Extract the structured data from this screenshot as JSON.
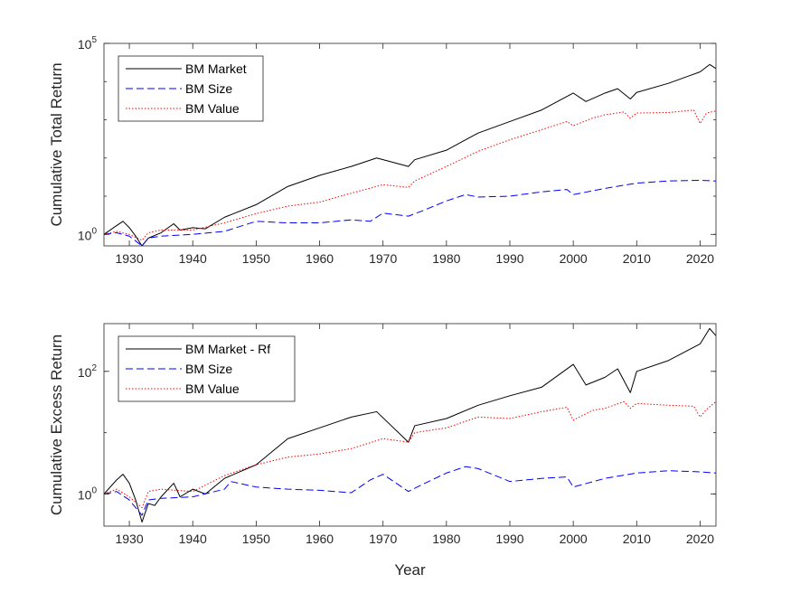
{
  "chart_data": [
    {
      "type": "line",
      "ylabel": "Cumulative Total Return",
      "xlabel": "",
      "yscale": "log",
      "xlim": [
        1926,
        2022.5
      ],
      "ylim": [
        0.5,
        100000
      ],
      "x_ticks": [
        1930,
        1940,
        1950,
        1960,
        1970,
        1980,
        1990,
        2000,
        2010,
        2020
      ],
      "y_ticks": [
        {
          "base": "10",
          "exp": "0",
          "value": 1
        },
        {
          "base": "10",
          "exp": "5",
          "value": 100000
        }
      ],
      "legend_position": "top-left",
      "series": [
        {
          "name": "BM Market",
          "color": "#000000",
          "style": "solid",
          "x": [
            1926,
            1928,
            1929,
            1930,
            1931,
            1932,
            1933,
            1935,
            1937,
            1938,
            1940,
            1942,
            1945,
            1950,
            1955,
            1960,
            1965,
            1969,
            1974,
            1975,
            1980,
            1985,
            1990,
            1995,
            2000,
            2002,
            2005,
            2007,
            2009,
            2010,
            2015,
            2020,
            2021.5,
            2022.5
          ],
          "y": [
            1,
            1.7,
            2.2,
            1.5,
            0.9,
            0.5,
            0.8,
            1.1,
            1.9,
            1.3,
            1.5,
            1.4,
            2.8,
            6,
            18,
            35,
            60,
            100,
            60,
            90,
            160,
            450,
            900,
            1800,
            5000,
            3000,
            5000,
            6500,
            3500,
            5200,
            9000,
            18000,
            28000,
            22000
          ]
        },
        {
          "name": "BM Size",
          "color": "#0000ff",
          "style": "dashed",
          "x": [
            1926,
            1928,
            1930,
            1932,
            1933,
            1935,
            1940,
            1945,
            1950,
            1955,
            1960,
            1965,
            1968,
            1970,
            1974,
            1976,
            1980,
            1983,
            1985,
            1990,
            1995,
            1999,
            2000,
            2005,
            2010,
            2015,
            2020,
            2022.5
          ],
          "y": [
            1,
            1.1,
            0.9,
            0.5,
            0.8,
            0.9,
            1.0,
            1.2,
            2.2,
            2.0,
            2.0,
            2.4,
            2.2,
            3.6,
            3.0,
            4.0,
            7.5,
            11,
            9.5,
            10,
            13,
            15,
            11,
            16,
            22,
            25,
            26,
            25
          ]
        },
        {
          "name": "BM Value",
          "color": "#ff0000",
          "style": "dotted",
          "x": [
            1926,
            1928,
            1930,
            1932,
            1933,
            1935,
            1940,
            1945,
            1950,
            1955,
            1960,
            1965,
            1970,
            1974,
            1975,
            1980,
            1985,
            1990,
            1995,
            1999,
            2000,
            2003,
            2005,
            2008,
            2009,
            2010,
            2015,
            2019,
            2020,
            2021,
            2022.5
          ],
          "y": [
            1,
            1.2,
            1.0,
            0.7,
            1.1,
            1.3,
            1.3,
            2.0,
            3.5,
            5.5,
            7,
            12,
            20,
            17,
            25,
            60,
            150,
            300,
            550,
            900,
            700,
            1100,
            1350,
            1600,
            1100,
            1500,
            1550,
            1800,
            800,
            1500,
            1700
          ]
        }
      ]
    },
    {
      "type": "line",
      "ylabel": "Cumulative Excess Return",
      "xlabel": "Year",
      "yscale": "log",
      "xlim": [
        1926,
        2022.5
      ],
      "ylim": [
        0.3,
        600
      ],
      "x_ticks": [
        1930,
        1940,
        1950,
        1960,
        1970,
        1980,
        1990,
        2000,
        2010,
        2020
      ],
      "y_ticks": [
        {
          "base": "10",
          "exp": "0",
          "value": 1
        },
        {
          "base": "10",
          "exp": "2",
          "value": 100
        }
      ],
      "legend_position": "top-left",
      "series": [
        {
          "name": "BM Market - Rf",
          "color": "#000000",
          "style": "solid",
          "x": [
            1926,
            1928,
            1929,
            1930,
            1931,
            1932,
            1933,
            1934,
            1935,
            1937,
            1938,
            1940,
            1942,
            1945,
            1950,
            1955,
            1960,
            1965,
            1969,
            1974,
            1975,
            1980,
            1985,
            1990,
            1995,
            2000,
            2002,
            2005,
            2007,
            2009,
            2010,
            2015,
            2020,
            2021.5,
            2022.5
          ],
          "y": [
            1,
            1.7,
            2.1,
            1.5,
            0.8,
            0.35,
            0.7,
            0.65,
            0.9,
            1.5,
            0.9,
            1.2,
            1.0,
            1.8,
            3.0,
            8,
            12,
            18,
            22,
            7,
            13,
            17,
            28,
            40,
            55,
            130,
            60,
            80,
            110,
            45,
            100,
            150,
            280,
            500,
            380
          ]
        },
        {
          "name": "BM Size",
          "color": "#0000ff",
          "style": "dashed",
          "x": [
            1926,
            1928,
            1930,
            1932,
            1933,
            1935,
            1940,
            1945,
            1946,
            1950,
            1955,
            1960,
            1965,
            1968,
            1970,
            1974,
            1976,
            1980,
            1983,
            1985,
            1990,
            1995,
            1999,
            2000,
            2005,
            2010,
            2015,
            2020,
            2022.5
          ],
          "y": [
            1,
            1.1,
            0.8,
            0.45,
            0.8,
            0.85,
            0.9,
            1.2,
            1.6,
            1.3,
            1.2,
            1.15,
            1.05,
            1.7,
            2.1,
            1.1,
            1.4,
            2.2,
            2.8,
            2.6,
            1.6,
            1.8,
            1.9,
            1.3,
            1.8,
            2.2,
            2.4,
            2.3,
            2.2
          ]
        },
        {
          "name": "BM Value",
          "color": "#ff0000",
          "style": "dotted",
          "x": [
            1926,
            1928,
            1930,
            1932,
            1933,
            1935,
            1940,
            1945,
            1950,
            1955,
            1960,
            1965,
            1970,
            1974,
            1975,
            1980,
            1985,
            1990,
            1995,
            1999,
            2000,
            2003,
            2005,
            2008,
            2009,
            2010,
            2015,
            2019,
            2020,
            2021,
            2022.5
          ],
          "y": [
            1,
            1.2,
            0.9,
            0.6,
            1.1,
            1.2,
            1.1,
            2.0,
            3.0,
            4.0,
            4.5,
            5.5,
            8,
            7,
            10,
            12,
            18,
            17,
            22,
            26,
            16,
            23,
            25,
            32,
            25,
            30,
            28,
            27,
            18,
            24,
            32
          ]
        }
      ]
    }
  ]
}
